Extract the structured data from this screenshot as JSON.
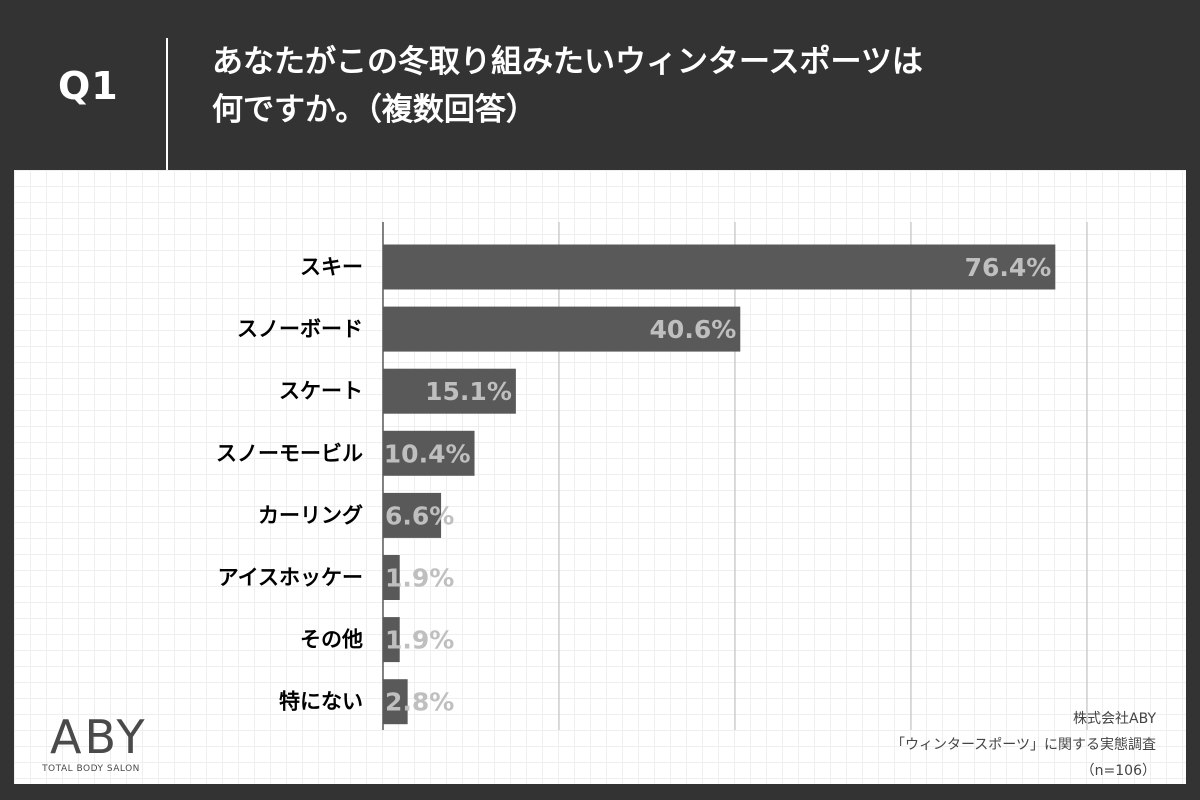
{
  "header": {
    "question_label": "Q1",
    "title_line1": "あなたがこの冬取り組みたいウィンタースポーツは",
    "title_line2": "何ですか。（複数回答）"
  },
  "chart_data": {
    "type": "bar",
    "orientation": "horizontal",
    "categories": [
      "スキー",
      "スノーボード",
      "スケート",
      "スノーモービル",
      "カーリング",
      "アイスホッケー",
      "その他",
      "特にない"
    ],
    "values": [
      76.4,
      40.6,
      15.1,
      10.4,
      6.6,
      1.9,
      1.9,
      2.8
    ],
    "value_labels": [
      "76.4%",
      "40.6%",
      "15.1%",
      "10.4%",
      "6.6%",
      "1.9%",
      "1.9%",
      "2.8%"
    ],
    "xlim": [
      0,
      80
    ],
    "grid": true,
    "colors": {
      "bar": "#595959",
      "label": "#bfbfbf",
      "category_text": "#000000",
      "gridline": "#bbbbbb"
    }
  },
  "logo": {
    "text": "ABY",
    "subtitle": "TOTAL BODY SALON"
  },
  "source": {
    "line1": "株式会社ABY",
    "line2": "「ウィンタースポーツ」に関する実態調査",
    "line3": "（n=106）"
  }
}
